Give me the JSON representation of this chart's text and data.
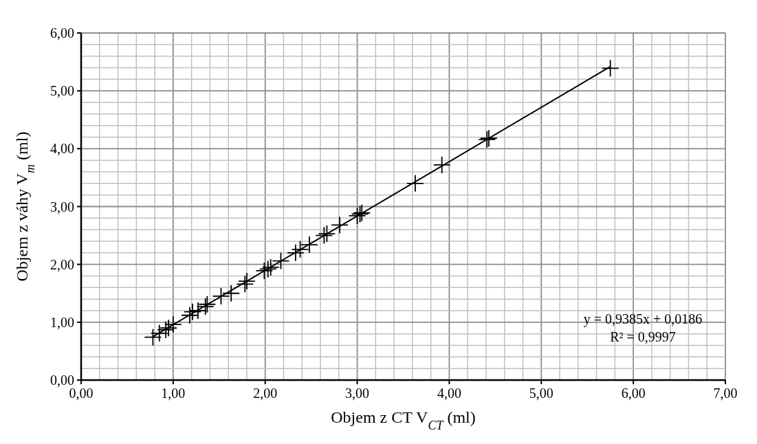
{
  "chart_data": {
    "type": "scatter",
    "xlabel": "Objem z CT V$_{CT}$ (ml)",
    "ylabel": "Objem z váhy V$_{m}$ (ml)",
    "xlim": [
      0,
      7
    ],
    "ylim": [
      0,
      6
    ],
    "xticks": [
      {
        "value": 0,
        "label": "0,00"
      },
      {
        "value": 0.2,
        "label": null
      },
      {
        "value": 0.4,
        "label": null
      },
      {
        "value": 0.6,
        "label": null
      },
      {
        "value": 0.8,
        "label": null
      },
      {
        "value": 1,
        "label": "1,00"
      },
      {
        "value": 1.2,
        "label": null
      },
      {
        "value": 1.4,
        "label": null
      },
      {
        "value": 1.6,
        "label": null
      },
      {
        "value": 1.8,
        "label": null
      },
      {
        "value": 2,
        "label": "2,00"
      },
      {
        "value": 2.2,
        "label": null
      },
      {
        "value": 2.4,
        "label": null
      },
      {
        "value": 2.6,
        "label": null
      },
      {
        "value": 2.8,
        "label": null
      },
      {
        "value": 3,
        "label": "3,00"
      },
      {
        "value": 3.2,
        "label": null
      },
      {
        "value": 3.4,
        "label": null
      },
      {
        "value": 3.6,
        "label": null
      },
      {
        "value": 3.8,
        "label": null
      },
      {
        "value": 4,
        "label": "4,00"
      },
      {
        "value": 4.2,
        "label": null
      },
      {
        "value": 4.4,
        "label": null
      },
      {
        "value": 4.6,
        "label": null
      },
      {
        "value": 4.8,
        "label": null
      },
      {
        "value": 5,
        "label": "5,00"
      },
      {
        "value": 5.2,
        "label": null
      },
      {
        "value": 5.4,
        "label": null
      },
      {
        "value": 5.6,
        "label": null
      },
      {
        "value": 5.8,
        "label": null
      },
      {
        "value": 6,
        "label": "6,00"
      },
      {
        "value": 6.2,
        "label": null
      },
      {
        "value": 6.4,
        "label": null
      },
      {
        "value": 6.6,
        "label": null
      },
      {
        "value": 6.8,
        "label": null
      },
      {
        "value": 7,
        "label": "7,00"
      }
    ],
    "yticks": [
      {
        "value": 0,
        "label": "0,00"
      },
      {
        "value": 0.2,
        "label": null
      },
      {
        "value": 0.4,
        "label": null
      },
      {
        "value": 0.6,
        "label": null
      },
      {
        "value": 0.8,
        "label": null
      },
      {
        "value": 1,
        "label": "1,00"
      },
      {
        "value": 1.2,
        "label": null
      },
      {
        "value": 1.4,
        "label": null
      },
      {
        "value": 1.6,
        "label": null
      },
      {
        "value": 1.8,
        "label": null
      },
      {
        "value": 2,
        "label": "2,00"
      },
      {
        "value": 2.2,
        "label": null
      },
      {
        "value": 2.4,
        "label": null
      },
      {
        "value": 2.6,
        "label": null
      },
      {
        "value": 2.8,
        "label": null
      },
      {
        "value": 3,
        "label": "3,00"
      },
      {
        "value": 3.2,
        "label": null
      },
      {
        "value": 3.4,
        "label": null
      },
      {
        "value": 3.6,
        "label": null
      },
      {
        "value": 3.8,
        "label": null
      },
      {
        "value": 4,
        "label": "4,00"
      },
      {
        "value": 4.2,
        "label": null
      },
      {
        "value": 4.4,
        "label": null
      },
      {
        "value": 4.6,
        "label": null
      },
      {
        "value": 4.8,
        "label": null
      },
      {
        "value": 5,
        "label": "5,00"
      },
      {
        "value": 5.2,
        "label": null
      },
      {
        "value": 5.4,
        "label": null
      },
      {
        "value": 5.6,
        "label": null
      },
      {
        "value": 5.8,
        "label": null
      },
      {
        "value": 6,
        "label": "6,00"
      }
    ],
    "grid": true,
    "marker": "cross",
    "annotations": [
      "y = 0,9385x + 0,0186",
      "R² = 0,9997"
    ],
    "series": [
      {
        "color": "#000000",
        "x": [
          0.78,
          0.85,
          0.92,
          0.95,
          1.0,
          1.18,
          1.21,
          1.27,
          1.35,
          1.37,
          1.52,
          1.63,
          1.78,
          1.8,
          1.99,
          2.03,
          2.06,
          2.17,
          2.33,
          2.38,
          2.48,
          2.64,
          2.67,
          2.81,
          3.0,
          3.03,
          3.05,
          3.63,
          3.92,
          4.41,
          4.43,
          5.75
        ],
        "values": [
          0.74,
          0.81,
          0.87,
          0.9,
          0.96,
          1.12,
          1.18,
          1.2,
          1.27,
          1.31,
          1.45,
          1.5,
          1.66,
          1.71,
          1.89,
          1.92,
          1.95,
          2.06,
          2.2,
          2.26,
          2.34,
          2.5,
          2.53,
          2.68,
          2.84,
          2.87,
          2.89,
          3.4,
          3.72,
          4.16,
          4.18,
          5.39
        ]
      },
      {
        "type": "line",
        "marker": "none",
        "color": "#000000",
        "x": [
          0.78,
          5.75
        ],
        "values": [
          0.75,
          5.42
        ]
      }
    ]
  }
}
